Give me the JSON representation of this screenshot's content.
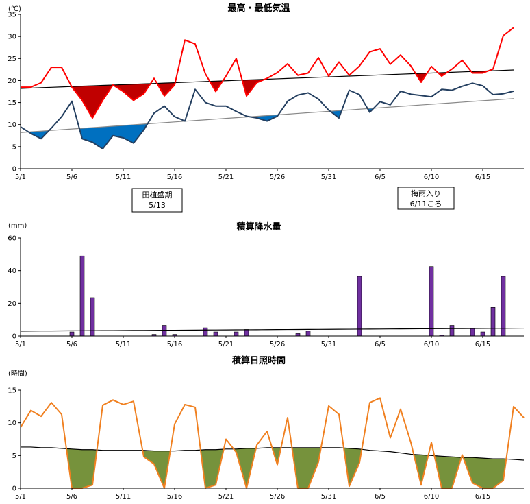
{
  "chart_data": [
    {
      "type": "line",
      "title": "最高・最低気温",
      "ylabel": "(℃)",
      "ylim": [
        0,
        35
      ],
      "yticks": [
        "0",
        "5",
        "10",
        "15",
        "20",
        "25",
        "30",
        "35"
      ],
      "xticks": [
        "5/1",
        "5/6",
        "5/11",
        "5/16",
        "5/21",
        "5/26",
        "5/31",
        "6/5",
        "6/10",
        "6/15"
      ],
      "days": 50,
      "series": [
        {
          "key": "max",
          "color": "#ff0000",
          "values": [
            18.5,
            18.5,
            19.5,
            23,
            23,
            18.5,
            15.5,
            11.5,
            15.5,
            19,
            17.5,
            15.5,
            17,
            20.5,
            16.5,
            19,
            29.2,
            28.3,
            21.5,
            17.5,
            21,
            25,
            16.5,
            19.5,
            20.5,
            21.8,
            23.8,
            21.2,
            21.7,
            25.2,
            21,
            24.2,
            21.2,
            23.3,
            26.5,
            27.2,
            23.7,
            25.8,
            23.3,
            19.6,
            23.2,
            21,
            22.6,
            24.6,
            21.7,
            21.7,
            22.6,
            30.2,
            32
          ]
        },
        {
          "key": "min",
          "color": "#243f60",
          "values": [
            9.5,
            8,
            6.8,
            9.2,
            11.8,
            15.3,
            6.8,
            6,
            4.5,
            7.5,
            7,
            5.8,
            8.8,
            12.6,
            14.2,
            11.8,
            10.8,
            18,
            15,
            14.2,
            14.2,
            13,
            11.9,
            11.5,
            10.8,
            11.9,
            15.3,
            16.7,
            17.2,
            15.8,
            13.3,
            11.5,
            17.8,
            16.8,
            12.8,
            15.2,
            14.5,
            17.6,
            16.9,
            16.6,
            16.3,
            18,
            17.8,
            18.7,
            19.4,
            18.8,
            16.8,
            17,
            17.6
          ]
        },
        {
          "key": "max_normal",
          "color": "#000000",
          "values": [
            18.2,
            22.4
          ]
        },
        {
          "key": "min_normal",
          "color": "#888888",
          "values": [
            8.2,
            15.9
          ]
        }
      ],
      "fill_colors": {
        "max_below": "#c00000",
        "min_below": "#0070c0"
      },
      "annotations": [
        {
          "lines": [
            "田植盛期",
            "5/13"
          ]
        },
        {
          "lines": [
            "梅雨入り",
            "6/11ころ"
          ]
        }
      ]
    },
    {
      "type": "bar",
      "title": "積算降水量",
      "ylabel": "(mm)",
      "ylim": [
        0,
        60
      ],
      "yticks": [
        "0",
        "20",
        "40",
        "60"
      ],
      "xticks": [
        "5/1",
        "5/6",
        "5/11",
        "5/16",
        "5/21",
        "5/26",
        "5/31",
        "6/5",
        "6/10",
        "6/15"
      ],
      "days": 50,
      "color": "#7030a0",
      "bars": [
        {
          "day": 5,
          "value": 2.5
        },
        {
          "day": 6,
          "value": 49
        },
        {
          "day": 7,
          "value": 23.5
        },
        {
          "day": 13,
          "value": 1
        },
        {
          "day": 14,
          "value": 6.5
        },
        {
          "day": 15,
          "value": 1
        },
        {
          "day": 18,
          "value": 5
        },
        {
          "day": 19,
          "value": 2.5
        },
        {
          "day": 21,
          "value": 2.5
        },
        {
          "day": 22,
          "value": 4
        },
        {
          "day": 27,
          "value": 1.5
        },
        {
          "day": 28,
          "value": 3
        },
        {
          "day": 33,
          "value": 36.5
        },
        {
          "day": 40,
          "value": 42.5
        },
        {
          "day": 41,
          "value": 0.5
        },
        {
          "day": 42,
          "value": 6.5
        },
        {
          "day": 44,
          "value": 4.5
        },
        {
          "day": 45,
          "value": 2.5
        },
        {
          "day": 46,
          "value": 17.5
        },
        {
          "day": 47,
          "value": 36.5
        }
      ],
      "normal_line": {
        "color": "#000000",
        "values": [
          3,
          4.8
        ]
      }
    },
    {
      "type": "line",
      "title": "積算日照時間",
      "ylabel": "(時間)",
      "ylim": [
        0,
        15
      ],
      "yticks": [
        "0",
        "5",
        "10",
        "15"
      ],
      "xticks": [
        "5/1",
        "5/6",
        "5/11",
        "5/16",
        "5/21",
        "5/26",
        "5/31",
        "6/5",
        "6/10",
        "6/15"
      ],
      "days": 50,
      "series": [
        {
          "key": "sunshine",
          "color": "#f08020",
          "values": [
            9.3,
            11.9,
            11,
            13.1,
            11.3,
            0,
            0,
            0.5,
            12.7,
            13.5,
            12.8,
            13.3,
            4.8,
            3.7,
            0,
            9.8,
            12.8,
            12.4,
            0,
            0.5,
            7.5,
            5.5,
            0,
            6.6,
            8.7,
            3.6,
            10.8,
            0,
            0,
            4,
            12.6,
            11.3,
            0.3,
            3.9,
            13.1,
            13.8,
            7.7,
            12.1,
            7,
            0.5,
            7,
            0,
            0,
            5.1,
            0.8,
            0,
            0,
            1.2,
            12.5,
            10.8
          ]
        },
        {
          "key": "normal",
          "color": "#000000",
          "values": [
            6.3,
            6.3,
            6.2,
            6.2,
            6.1,
            6.0,
            5.9,
            5.9,
            5.8,
            5.8,
            5.8,
            5.8,
            5.8,
            5.7,
            5.7,
            5.7,
            5.8,
            5.8,
            5.9,
            5.9,
            6.0,
            6.0,
            6.1,
            6.1,
            6.2,
            6.2,
            6.2,
            6.2,
            6.2,
            6.2,
            6.2,
            6.2,
            6.1,
            6.0,
            5.8,
            5.7,
            5.6,
            5.4,
            5.2,
            5.1,
            5.0,
            4.9,
            4.8,
            4.7,
            4.7,
            4.6,
            4.5,
            4.5,
            4.4,
            4.3
          ]
        }
      ],
      "fill_color": "#76923c"
    }
  ]
}
